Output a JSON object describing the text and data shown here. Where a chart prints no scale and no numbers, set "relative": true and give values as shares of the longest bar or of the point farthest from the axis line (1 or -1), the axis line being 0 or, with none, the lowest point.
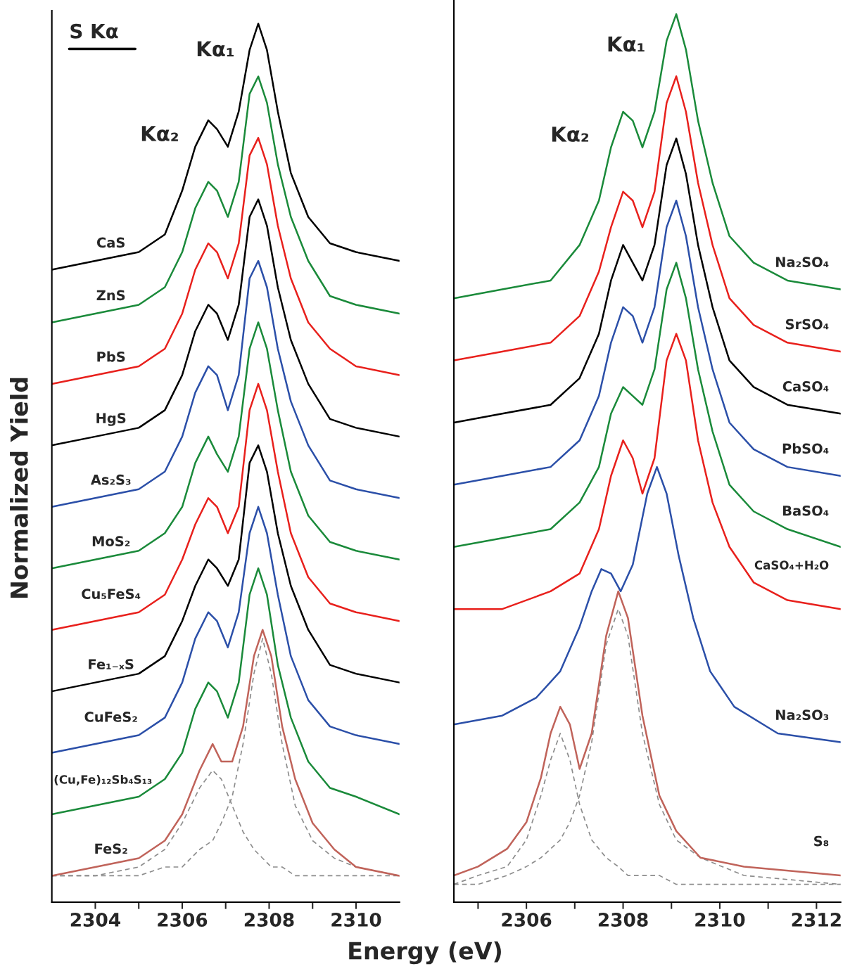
{
  "chart_data": [
    {
      "type": "line",
      "relative": true,
      "ylabel": "Normalized Yield",
      "xlabel": "Energy (eV)",
      "legend": false,
      "grid": false,
      "xlim": [
        2303,
        2311
      ],
      "xticks": [
        2304,
        {
          "value": 2305,
          "label": null
        },
        2306,
        {
          "value": 2307,
          "label": null
        },
        2308,
        {
          "value": 2309,
          "label": null
        },
        2310
      ],
      "annotations": [
        "S Kα",
        "Kα₁",
        "Kα₂"
      ],
      "x": [
        2303,
        2304,
        2305,
        2305.6,
        2306,
        2306.3,
        2306.6,
        2306.8,
        2307.05,
        2307.3,
        2307.55,
        2307.75,
        2307.95,
        2308.2,
        2308.5,
        2308.9,
        2309.4,
        2310,
        2311
      ],
      "series": [
        {
          "name": "CaS",
          "color": "#000000",
          "values": [
            0.72,
            0.73,
            0.74,
            0.76,
            0.81,
            0.86,
            0.89,
            0.88,
            0.86,
            0.9,
            0.97,
            1.0,
            0.97,
            0.9,
            0.83,
            0.78,
            0.75,
            0.74,
            0.73
          ]
        },
        {
          "name": "ZnS",
          "color": "#1a8a3a",
          "values": [
            0.66,
            0.67,
            0.68,
            0.7,
            0.74,
            0.79,
            0.82,
            0.81,
            0.78,
            0.82,
            0.92,
            0.94,
            0.91,
            0.84,
            0.78,
            0.73,
            0.69,
            0.68,
            0.67
          ]
        },
        {
          "name": "PbS",
          "color": "#e8201c",
          "values": [
            0.59,
            0.6,
            0.61,
            0.63,
            0.67,
            0.72,
            0.75,
            0.74,
            0.71,
            0.75,
            0.85,
            0.87,
            0.84,
            0.77,
            0.71,
            0.66,
            0.63,
            0.61,
            0.6
          ]
        },
        {
          "name": "HgS",
          "color": "#000000",
          "values": [
            0.52,
            0.53,
            0.54,
            0.56,
            0.6,
            0.65,
            0.68,
            0.67,
            0.64,
            0.68,
            0.78,
            0.8,
            0.77,
            0.7,
            0.64,
            0.59,
            0.55,
            0.54,
            0.53
          ]
        },
        {
          "name": "As₂S₃",
          "color": "#2b4fa8",
          "values": [
            0.45,
            0.46,
            0.47,
            0.49,
            0.53,
            0.58,
            0.61,
            0.6,
            0.56,
            0.6,
            0.71,
            0.73,
            0.7,
            0.63,
            0.57,
            0.52,
            0.48,
            0.47,
            0.46
          ]
        },
        {
          "name": "MoS₂",
          "color": "#1a8a3a",
          "values": [
            0.38,
            0.39,
            0.4,
            0.42,
            0.45,
            0.5,
            0.53,
            0.51,
            0.49,
            0.53,
            0.63,
            0.66,
            0.63,
            0.56,
            0.49,
            0.44,
            0.41,
            0.4,
            0.39
          ]
        },
        {
          "name": "Cu₅FeS₄",
          "color": "#e8201c",
          "values": [
            0.31,
            0.32,
            0.33,
            0.35,
            0.39,
            0.43,
            0.46,
            0.45,
            0.42,
            0.45,
            0.56,
            0.59,
            0.56,
            0.49,
            0.42,
            0.37,
            0.34,
            0.33,
            0.32
          ]
        },
        {
          "name": "Fe₁₋ₓS",
          "color": "#000000",
          "values": [
            0.24,
            0.25,
            0.26,
            0.28,
            0.32,
            0.36,
            0.39,
            0.38,
            0.36,
            0.39,
            0.5,
            0.52,
            0.49,
            0.42,
            0.36,
            0.31,
            0.27,
            0.26,
            0.25
          ]
        },
        {
          "name": "CuFeS₂",
          "color": "#2b4fa8",
          "values": [
            0.17,
            0.18,
            0.19,
            0.21,
            0.25,
            0.3,
            0.33,
            0.32,
            0.29,
            0.33,
            0.42,
            0.45,
            0.42,
            0.35,
            0.28,
            0.23,
            0.2,
            0.19,
            0.18
          ]
        },
        {
          "name": "(Cu,Fe)₁₂Sb₄S₁₃",
          "color": "#1a8a3a",
          "values": [
            0.1,
            0.11,
            0.12,
            0.14,
            0.17,
            0.22,
            0.25,
            0.24,
            0.21,
            0.25,
            0.35,
            0.38,
            0.35,
            0.27,
            0.21,
            0.16,
            0.13,
            0.12,
            0.1
          ]
        },
        {
          "color": "#8c8c8c",
          "line_style": "dashed",
          "x": [
            2303,
            2304,
            2305,
            2305.6,
            2306,
            2306.4,
            2306.7,
            2306.9,
            2307.15,
            2307.4,
            2307.65,
            2307.85,
            2308.05,
            2308.3,
            2308.6,
            2309,
            2309.5,
            2310,
            2311
          ],
          "values": [
            0.03,
            0.03,
            0.04,
            0.06,
            0.09,
            0.13,
            0.15,
            0.14,
            0.11,
            0.08,
            0.06,
            0.05,
            0.04,
            0.04,
            0.03,
            0.03,
            0.03,
            0.03,
            0.03
          ]
        },
        {
          "color": "#8c8c8c",
          "line_style": "dashed",
          "x": [
            2303,
            2304,
            2305,
            2305.6,
            2306,
            2306.4,
            2306.7,
            2306.9,
            2307.15,
            2307.4,
            2307.65,
            2307.85,
            2308.05,
            2308.3,
            2308.6,
            2309,
            2309.5,
            2310,
            2311
          ],
          "values": [
            0.03,
            0.03,
            0.03,
            0.04,
            0.04,
            0.06,
            0.07,
            0.09,
            0.12,
            0.18,
            0.26,
            0.3,
            0.26,
            0.18,
            0.11,
            0.07,
            0.05,
            0.04,
            0.03
          ]
        },
        {
          "name": "FeS₂",
          "color": "#c0635a",
          "x": [
            2303,
            2304,
            2305,
            2305.6,
            2306,
            2306.4,
            2306.7,
            2306.9,
            2307.15,
            2307.4,
            2307.65,
            2307.85,
            2308.05,
            2308.3,
            2308.6,
            2309,
            2309.5,
            2310,
            2311
          ],
          "values": [
            0.03,
            0.04,
            0.05,
            0.07,
            0.1,
            0.15,
            0.18,
            0.16,
            0.16,
            0.2,
            0.28,
            0.31,
            0.28,
            0.2,
            0.14,
            0.09,
            0.06,
            0.04,
            0.03
          ]
        }
      ]
    },
    {
      "type": "line",
      "relative": true,
      "legend": false,
      "grid": false,
      "xlim": [
        2304.5,
        2312.5
      ],
      "xticks": [
        {
          "value": 2305,
          "label": null
        },
        2306,
        {
          "value": 2307,
          "label": null
        },
        2308,
        {
          "value": 2309,
          "label": null
        },
        2310,
        {
          "value": 2311,
          "label": null
        },
        2312
      ],
      "annotations": [
        "Kα₁",
        "Kα₂"
      ],
      "x": [
        2304.5,
        2305.5,
        2306.5,
        2307.1,
        2307.5,
        2307.75,
        2308.0,
        2308.2,
        2308.4,
        2308.65,
        2308.9,
        2309.1,
        2309.3,
        2309.55,
        2309.85,
        2310.2,
        2310.7,
        2311.4,
        2312.5
      ],
      "series": [
        {
          "name": "Na₂SO₄",
          "color": "#1a8a3a",
          "values": [
            0.68,
            0.69,
            0.7,
            0.74,
            0.79,
            0.85,
            0.89,
            0.88,
            0.85,
            0.89,
            0.97,
            1.0,
            0.96,
            0.88,
            0.81,
            0.75,
            0.72,
            0.7,
            0.69
          ]
        },
        {
          "name": "SrSO₄",
          "color": "#e8201c",
          "values": [
            0.61,
            0.62,
            0.63,
            0.66,
            0.71,
            0.76,
            0.8,
            0.79,
            0.76,
            0.8,
            0.9,
            0.93,
            0.89,
            0.81,
            0.74,
            0.68,
            0.65,
            0.63,
            0.62
          ]
        },
        {
          "name": "CaSO₄",
          "color": "#000000",
          "values": [
            0.54,
            0.55,
            0.56,
            0.59,
            0.64,
            0.7,
            0.74,
            0.72,
            0.7,
            0.74,
            0.83,
            0.86,
            0.82,
            0.74,
            0.67,
            0.61,
            0.58,
            0.56,
            0.55
          ]
        },
        {
          "name": "PbSO₄",
          "color": "#2b4fa8",
          "values": [
            0.47,
            0.48,
            0.49,
            0.52,
            0.57,
            0.63,
            0.67,
            0.66,
            0.63,
            0.67,
            0.76,
            0.79,
            0.75,
            0.67,
            0.6,
            0.54,
            0.51,
            0.49,
            0.48
          ]
        },
        {
          "name": "BaSO₄",
          "color": "#1a8a3a",
          "values": [
            0.4,
            0.41,
            0.42,
            0.45,
            0.49,
            0.55,
            0.58,
            0.57,
            0.56,
            0.6,
            0.69,
            0.72,
            0.68,
            0.6,
            0.53,
            0.47,
            0.44,
            0.42,
            0.4
          ]
        },
        {
          "name": "CaSO₄+H₂O",
          "color": "#e8201c",
          "values": [
            0.33,
            0.33,
            0.35,
            0.37,
            0.42,
            0.48,
            0.52,
            0.5,
            0.46,
            0.5,
            0.61,
            0.64,
            0.61,
            0.52,
            0.45,
            0.4,
            0.36,
            0.34,
            0.33
          ]
        },
        {
          "name": "Na₂SO₃",
          "color": "#2b4fa8",
          "x": [
            2304.5,
            2305.5,
            2306.2,
            2306.7,
            2307.1,
            2307.35,
            2307.55,
            2307.75,
            2307.95,
            2308.2,
            2308.5,
            2308.7,
            2308.9,
            2309.15,
            2309.45,
            2309.8,
            2310.3,
            2311.2,
            2312.5
          ],
          "values": [
            0.2,
            0.21,
            0.23,
            0.26,
            0.31,
            0.35,
            0.375,
            0.37,
            0.35,
            0.38,
            0.46,
            0.49,
            0.46,
            0.39,
            0.32,
            0.26,
            0.22,
            0.19,
            0.18
          ]
        },
        {
          "color": "#8c8c8c",
          "line_style": "dashed",
          "x": [
            2304.5,
            2305,
            2305.6,
            2306,
            2306.3,
            2306.5,
            2306.7,
            2306.9,
            2307.1,
            2307.35,
            2307.65,
            2307.9,
            2308.1,
            2308.4,
            2308.75,
            2309.1,
            2309.6,
            2310.5,
            2312.5
          ],
          "values": [
            0.02,
            0.03,
            0.04,
            0.07,
            0.12,
            0.16,
            0.19,
            0.16,
            0.11,
            0.07,
            0.05,
            0.04,
            0.03,
            0.03,
            0.03,
            0.02,
            0.02,
            0.02,
            0.02
          ]
        },
        {
          "color": "#8c8c8c",
          "line_style": "dashed",
          "x": [
            2304.5,
            2305,
            2305.6,
            2306,
            2306.3,
            2306.5,
            2306.7,
            2306.9,
            2307.1,
            2307.35,
            2307.65,
            2307.9,
            2308.1,
            2308.4,
            2308.75,
            2309.1,
            2309.6,
            2310.5,
            2312.5
          ],
          "values": [
            0.02,
            0.02,
            0.03,
            0.04,
            0.05,
            0.06,
            0.07,
            0.09,
            0.12,
            0.18,
            0.29,
            0.33,
            0.3,
            0.19,
            0.11,
            0.07,
            0.05,
            0.03,
            0.02
          ]
        },
        {
          "name": "S₈",
          "color": "#c0635a",
          "x": [
            2304.5,
            2305,
            2305.6,
            2306,
            2306.3,
            2306.5,
            2306.7,
            2306.9,
            2307.1,
            2307.35,
            2307.65,
            2307.9,
            2308.1,
            2308.4,
            2308.75,
            2309.1,
            2309.6,
            2310.5,
            2312.5
          ],
          "values": [
            0.03,
            0.04,
            0.06,
            0.09,
            0.14,
            0.19,
            0.22,
            0.2,
            0.15,
            0.19,
            0.3,
            0.35,
            0.32,
            0.21,
            0.12,
            0.08,
            0.05,
            0.04,
            0.03
          ]
        }
      ]
    }
  ]
}
